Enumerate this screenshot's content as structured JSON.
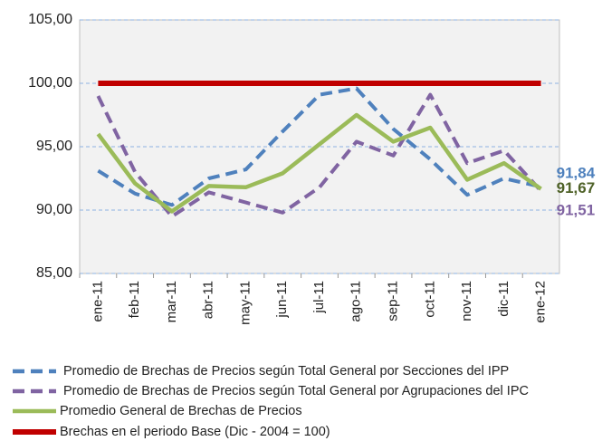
{
  "chart_data": {
    "type": "line",
    "categories": [
      "ene-11",
      "feb-11",
      "mar-11",
      "abr-11",
      "may-11",
      "jun-11",
      "jul-11",
      "ago-11",
      "sep-11",
      "oct-11",
      "nov-11",
      "dic-11",
      "ene-12"
    ],
    "ylim": [
      85,
      105
    ],
    "yticks": [
      {
        "value": 85,
        "label": "85,00"
      },
      {
        "value": 90,
        "label": "90,00"
      },
      {
        "value": 95,
        "label": "95,00"
      },
      {
        "value": 100,
        "label": "100,00"
      },
      {
        "value": 105,
        "label": "105,00"
      }
    ],
    "grid": true,
    "legend": "bottom",
    "series": [
      {
        "name": "Promedio de Brechas de Precios según Total General por Secciones del IPP",
        "color": "#4f81bd",
        "dashed": true,
        "values": [
          93.1,
          91.3,
          90.4,
          92.5,
          93.2,
          96.2,
          99.1,
          99.6,
          96.4,
          94.0,
          91.2,
          92.5,
          91.84
        ],
        "value_labels": [
          null,
          null,
          null,
          null,
          null,
          null,
          null,
          null,
          null,
          null,
          null,
          null,
          "91,84"
        ]
      },
      {
        "name": "Promedio de Brechas de Precios según Total General por Agrupaciones del IPC",
        "color": "#8064a2",
        "dashed": true,
        "values": [
          99.0,
          93.0,
          89.5,
          91.4,
          90.6,
          89.8,
          91.8,
          95.4,
          94.3,
          99.1,
          93.7,
          94.7,
          91.51
        ],
        "value_labels": [
          null,
          null,
          null,
          null,
          null,
          null,
          null,
          null,
          null,
          null,
          null,
          null,
          "91,51"
        ]
      },
      {
        "name": "Promedio General de Brechas de Precios",
        "color": "#9bbb59",
        "dashed": false,
        "values": [
          96.0,
          92.1,
          89.9,
          91.9,
          91.8,
          92.9,
          95.2,
          97.5,
          95.4,
          96.5,
          92.4,
          93.7,
          91.67
        ],
        "value_labels": [
          null,
          null,
          null,
          null,
          null,
          null,
          null,
          null,
          null,
          null,
          null,
          null,
          "91,67"
        ]
      },
      {
        "name": "Brechas en el periodo Base (Dic - 2004 = 100)",
        "color": "#c00000",
        "dashed": false,
        "values": [
          100,
          100,
          100,
          100,
          100,
          100,
          100,
          100,
          100,
          100,
          100,
          100,
          100
        ]
      }
    ]
  }
}
